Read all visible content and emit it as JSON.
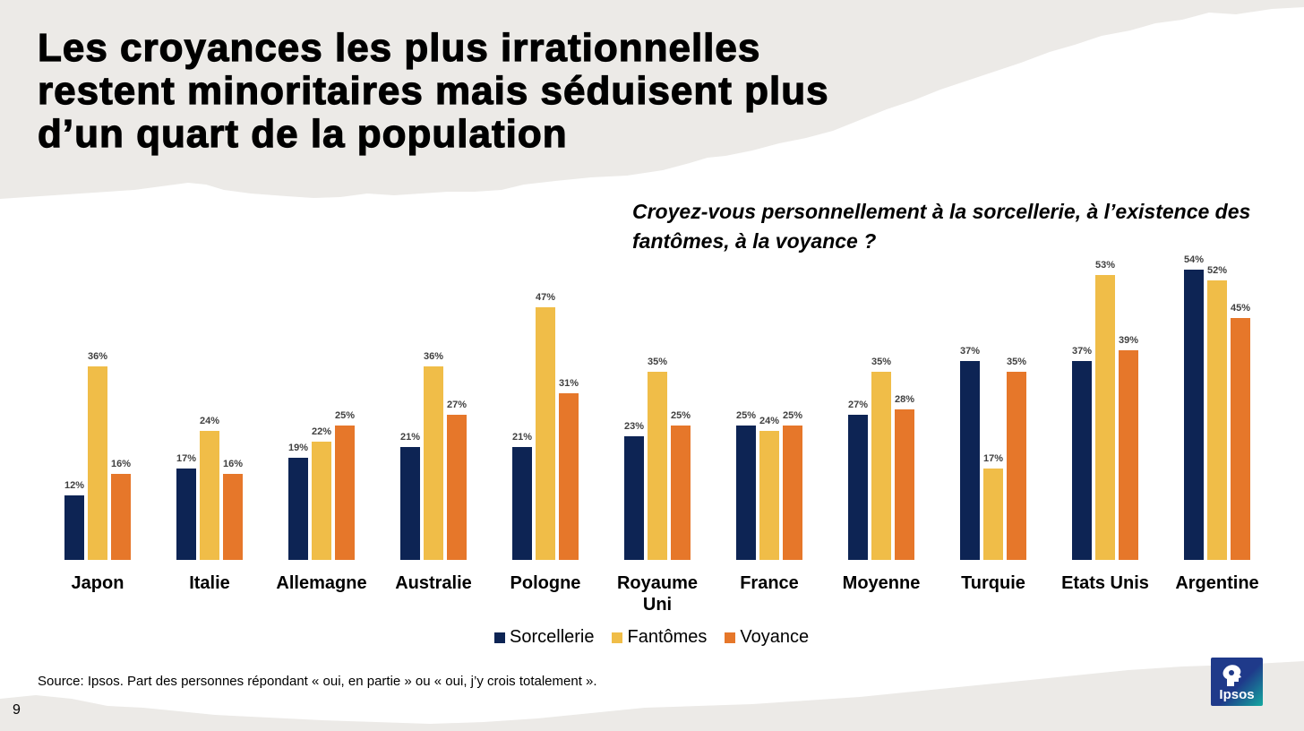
{
  "title": "Les croyances les plus irrationnelles restent minoritaires mais séduisent plus d’un quart de la population",
  "question": "Croyez-vous personnellement à la sorcellerie, à l’existence des fantômes, à la voyance ?",
  "source": "Source: Ipsos. Part des personnes répondant « oui, en partie » ou « oui, j’y crois totalement ».",
  "page_number": "9",
  "logo_text": "Ipsos",
  "colors": {
    "sorcellerie": "#0d2454",
    "fantomes": "#f0bd48",
    "voyance": "#e6772a",
    "paper": "#eceae7"
  },
  "chart_data": {
    "type": "bar",
    "title": "Croyez-vous personnellement à la sorcellerie, à l’existence des fantômes, à la voyance ?",
    "categories": [
      "Japon",
      "Italie",
      "Allemagne",
      "Australie",
      "Pologne",
      "Royaume Uni",
      "France",
      "Moyenne",
      "Turquie",
      "Etats Unis",
      "Argentine"
    ],
    "series": [
      {
        "name": "Sorcellerie",
        "values": [
          12,
          17,
          19,
          21,
          21,
          23,
          25,
          27,
          37,
          37,
          54
        ]
      },
      {
        "name": "Fantômes",
        "values": [
          36,
          24,
          22,
          36,
          47,
          35,
          24,
          35,
          17,
          53,
          52
        ]
      },
      {
        "name": "Voyance",
        "values": [
          16,
          16,
          25,
          27,
          31,
          25,
          25,
          28,
          35,
          39,
          45
        ]
      }
    ],
    "value_suffix": "%",
    "ylim": [
      0,
      55
    ],
    "grid": false,
    "legend": "bottom-center",
    "xlabel": "",
    "ylabel": ""
  }
}
